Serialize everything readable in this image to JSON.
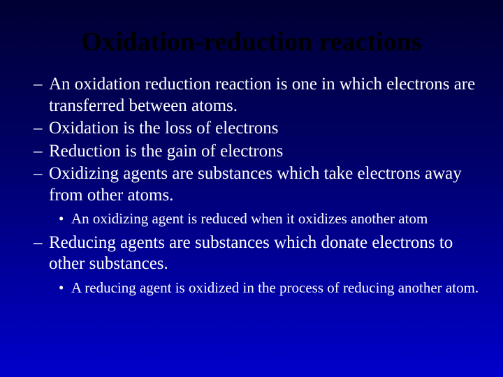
{
  "slide": {
    "title": "Oxidation-reduction reactions",
    "title_color": "#000000",
    "title_fontsize": 38,
    "body_color": "#ffffff",
    "l1_fontsize": 25,
    "l2_fontsize": 21,
    "background_gradient": [
      "#000033",
      "#000066",
      "#0000cc"
    ],
    "items": [
      {
        "level": 1,
        "text": "An oxidation reduction reaction is one in which electrons are transferred between atoms."
      },
      {
        "level": 1,
        "text": "Oxidation is the loss of electrons"
      },
      {
        "level": 1,
        "text": "Reduction is the gain of electrons"
      },
      {
        "level": 1,
        "text": "Oxidizing agents are substances which take electrons away from other atoms."
      },
      {
        "level": 2,
        "text": "An oxidizing agent is reduced when it oxidizes another atom"
      },
      {
        "level": 1,
        "text": "Reducing agents are substances which donate electrons to other substances."
      },
      {
        "level": 2,
        "text": "A reducing agent is oxidized in the process of reducing another atom."
      }
    ]
  }
}
